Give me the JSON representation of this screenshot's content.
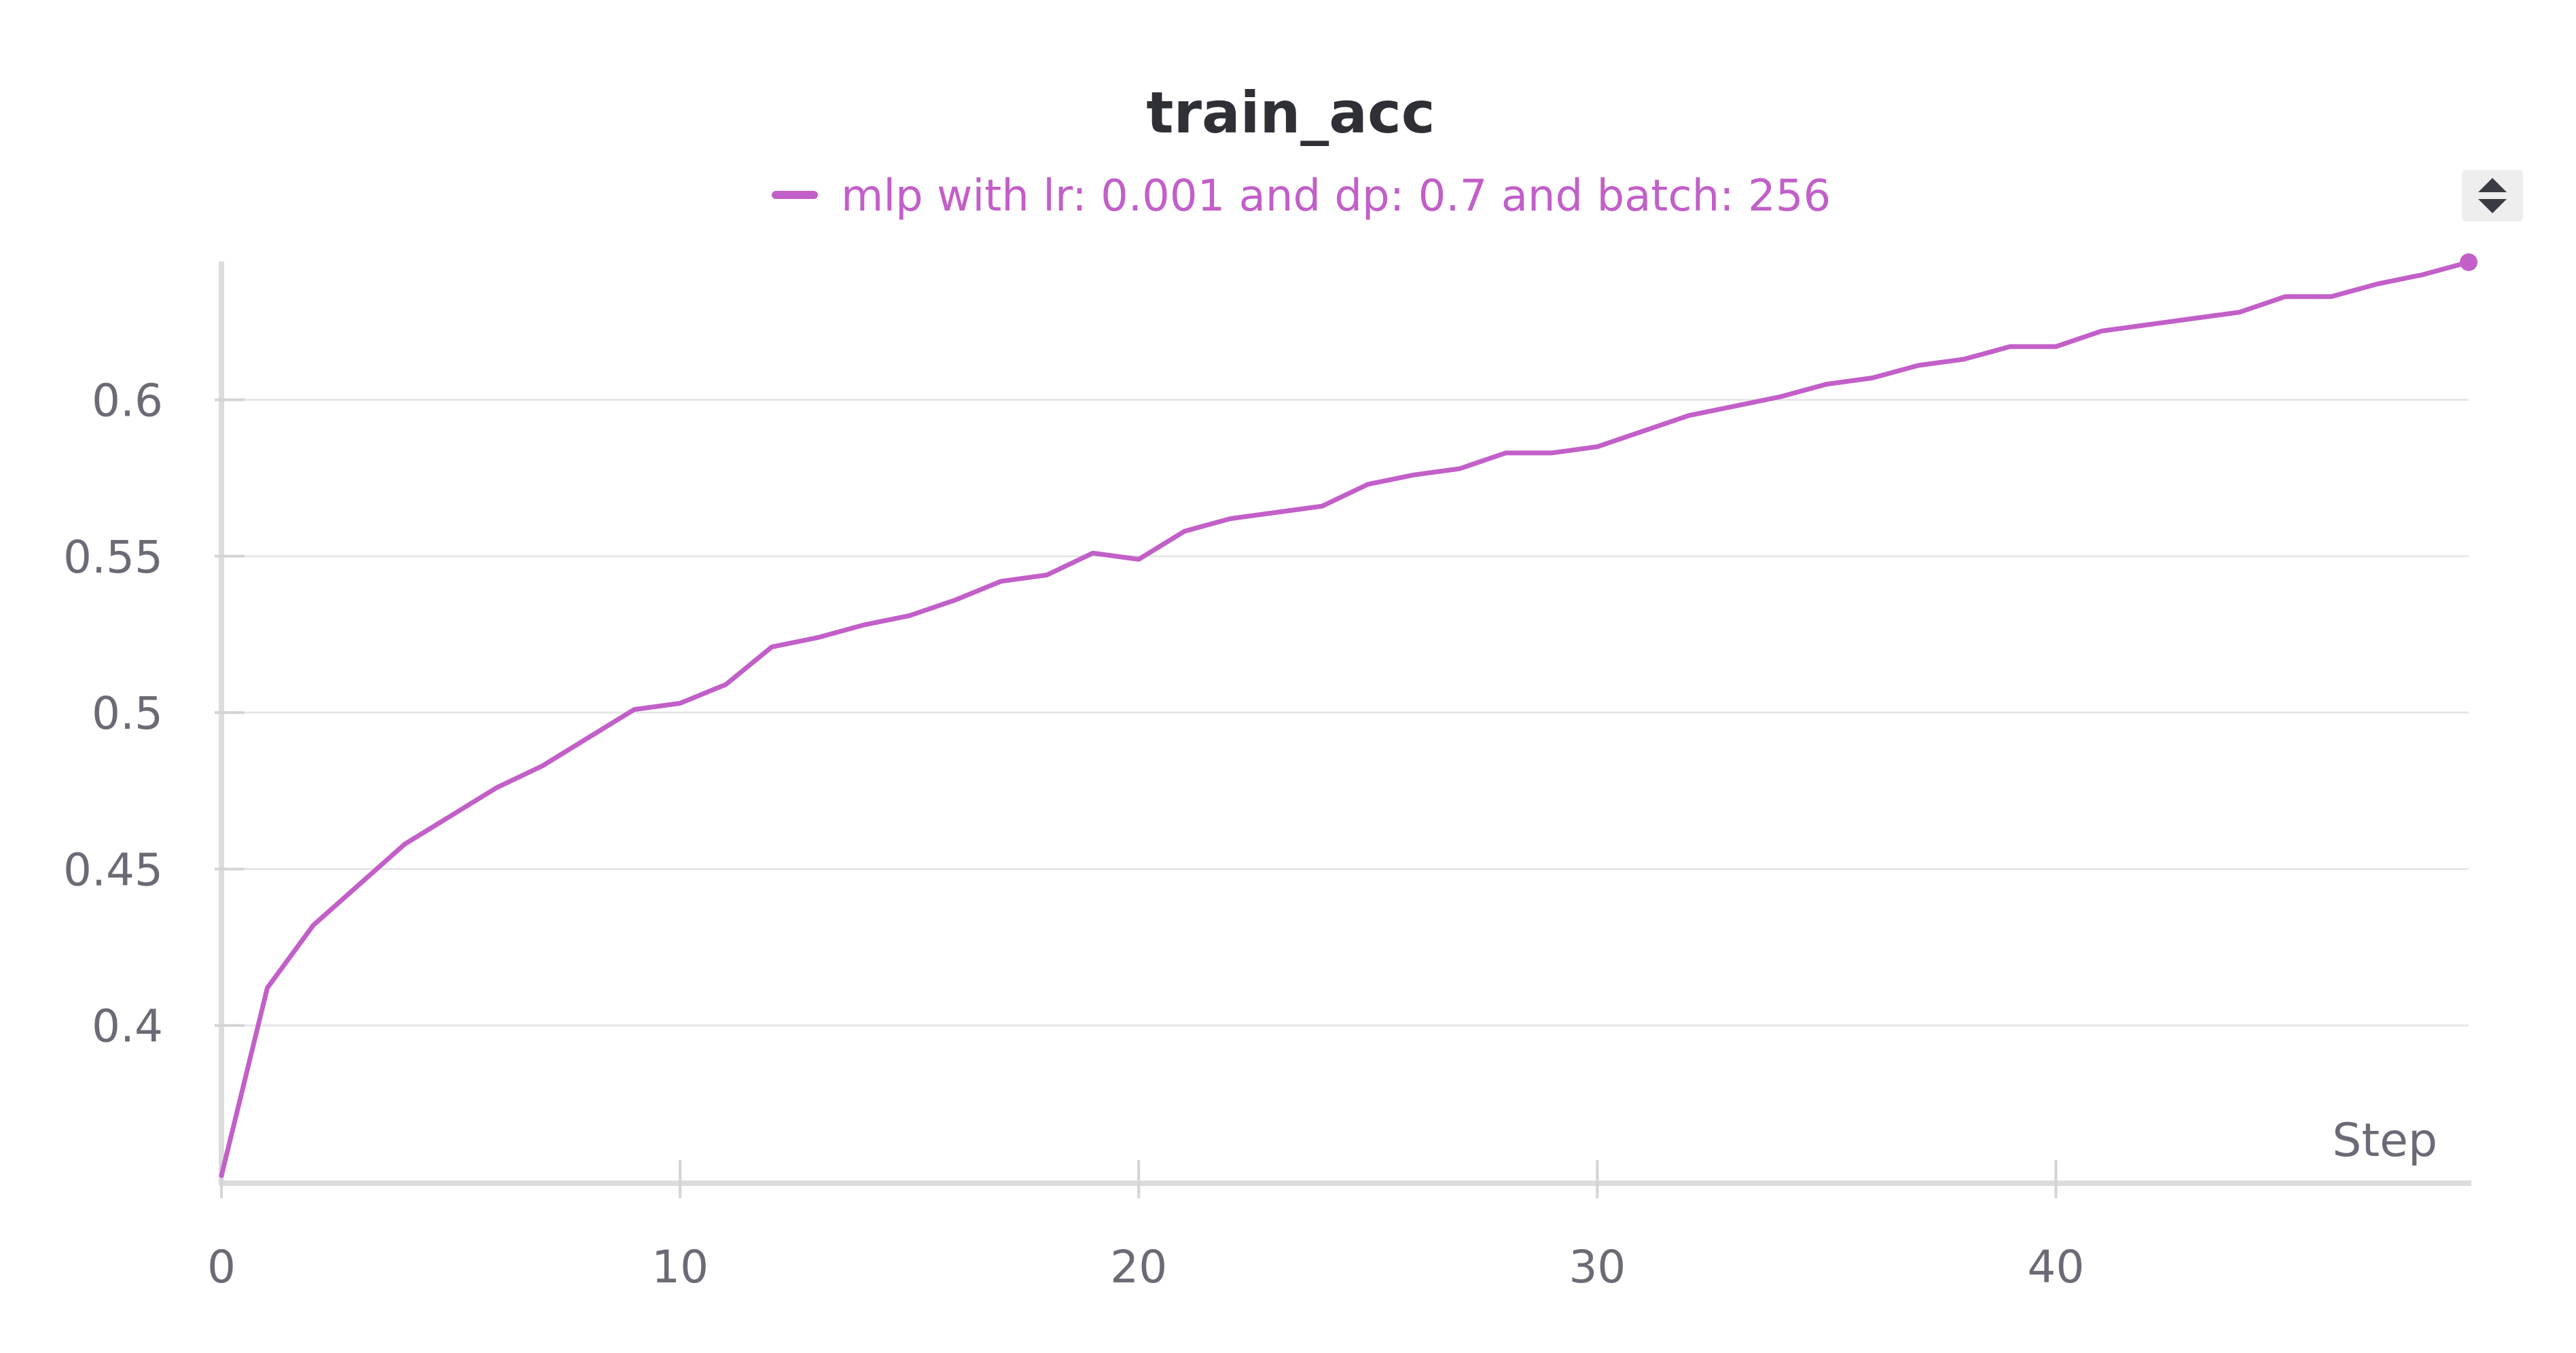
{
  "chart_data": {
    "type": "line",
    "title": "train_acc",
    "xlabel": "Step",
    "ylabel": "",
    "xlim": [
      0,
      49
    ],
    "ylim": [
      0.35,
      0.644
    ],
    "x_ticks": [
      0,
      10,
      20,
      30,
      40
    ],
    "x_tick_labels": [
      "0",
      "10",
      "20",
      "30",
      "40"
    ],
    "y_ticks": [
      0.4,
      0.45,
      0.5,
      0.55,
      0.6
    ],
    "y_tick_labels": [
      "0.4",
      "0.45",
      "0.5",
      "0.55",
      "0.6"
    ],
    "grid": true,
    "legend_position": "top-center",
    "series": [
      {
        "name": "mlp with lr: 0.001 and dp: 0.7 and batch: 256",
        "color": "#c25fc8",
        "x": [
          0,
          1,
          2,
          3,
          4,
          5,
          6,
          7,
          8,
          9,
          10,
          11,
          12,
          13,
          14,
          15,
          16,
          17,
          18,
          19,
          20,
          21,
          22,
          23,
          24,
          25,
          26,
          27,
          28,
          29,
          30,
          31,
          32,
          33,
          34,
          35,
          36,
          37,
          38,
          39,
          40,
          41,
          42,
          43,
          44,
          45,
          46,
          47,
          48,
          49
        ],
        "y": [
          0.352,
          0.412,
          0.432,
          0.445,
          0.458,
          0.467,
          0.476,
          0.483,
          0.492,
          0.501,
          0.503,
          0.509,
          0.521,
          0.524,
          0.528,
          0.531,
          0.536,
          0.542,
          0.544,
          0.551,
          0.549,
          0.558,
          0.562,
          0.564,
          0.566,
          0.573,
          0.576,
          0.578,
          0.583,
          0.583,
          0.585,
          0.59,
          0.595,
          0.598,
          0.601,
          0.605,
          0.607,
          0.611,
          0.613,
          0.617,
          0.617,
          0.622,
          0.624,
          0.626,
          0.628,
          0.633,
          0.633,
          0.637,
          0.64,
          0.644
        ]
      }
    ]
  },
  "ui": {
    "legend_toggle_icon": "sort-updown-icon"
  }
}
